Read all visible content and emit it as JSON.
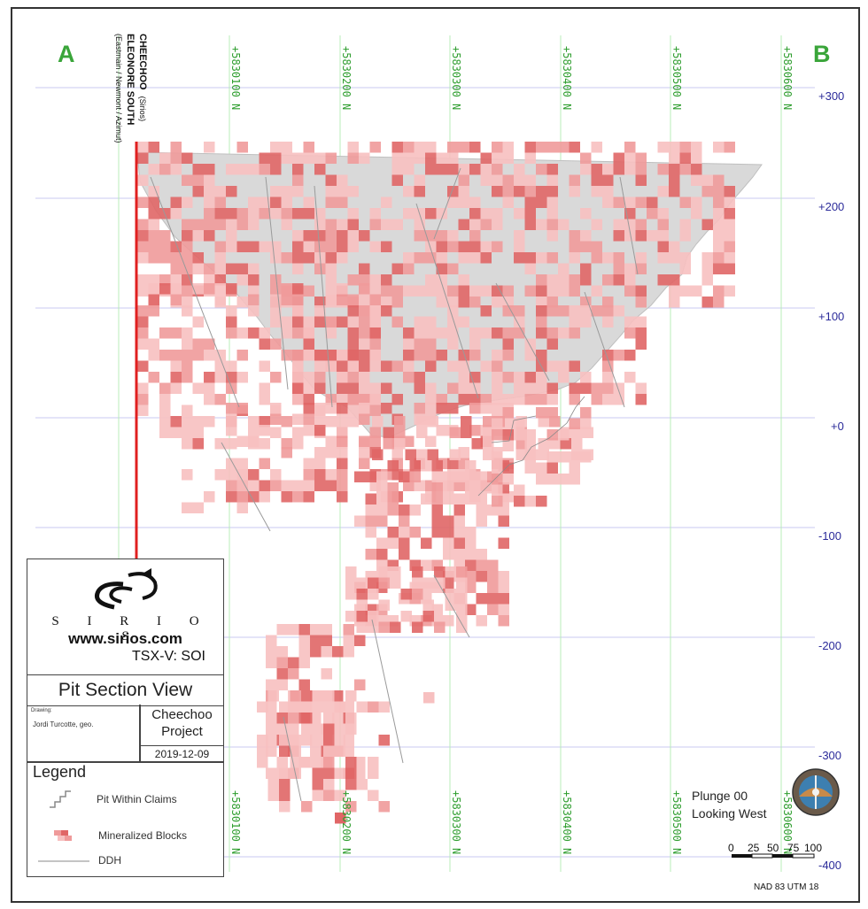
{
  "corners": {
    "left": "A",
    "right": "B"
  },
  "drillholes": {
    "name1": "CHEECHOO",
    "owner1": "(Sirios)",
    "name2": "ELEONORE SOUTH",
    "owner2": "(Eastmain / Newmont / Azimut)"
  },
  "northings": [
    "+5830100 N",
    "+5830200 N",
    "+5830300 N",
    "+5830400 N",
    "+5830500 N",
    "+5830600 N"
  ],
  "elevations": [
    "+300",
    "+200",
    "+100",
    "+0",
    "-100",
    "-200",
    "-300",
    "-400"
  ],
  "titleblock": {
    "brand": "S I R I O S",
    "website": "www.sirios.com",
    "ticker": "TSX-V: SOI",
    "title": "Pit Section View",
    "drawing_label": "Drawing:",
    "drawer": "Jordi Turcotte, geo.",
    "project_line1": "Cheechoo",
    "project_line2": "Project",
    "date": "2019-12-09",
    "legend_title": "Legend",
    "legend": [
      "Pit Within Claims",
      "Mineralized Blocks",
      "DDH"
    ]
  },
  "orientation": {
    "plunge": "Plunge 00",
    "looking": "Looking West"
  },
  "scale_bar": [
    "0",
    "25",
    "50",
    "75",
    "100"
  ],
  "projection": "NAD 83 UTM 18",
  "colors": {
    "northing_green": "#2e9e2e",
    "elev_blue": "#2b2b9a",
    "corner_green": "#3aa53a",
    "pit_gray": "#d9d9d9",
    "block_pale": "#f7c0c0",
    "block_mid": "#ef9a9a",
    "block_dark": "#e06666",
    "claim_line": "#e02020"
  }
}
